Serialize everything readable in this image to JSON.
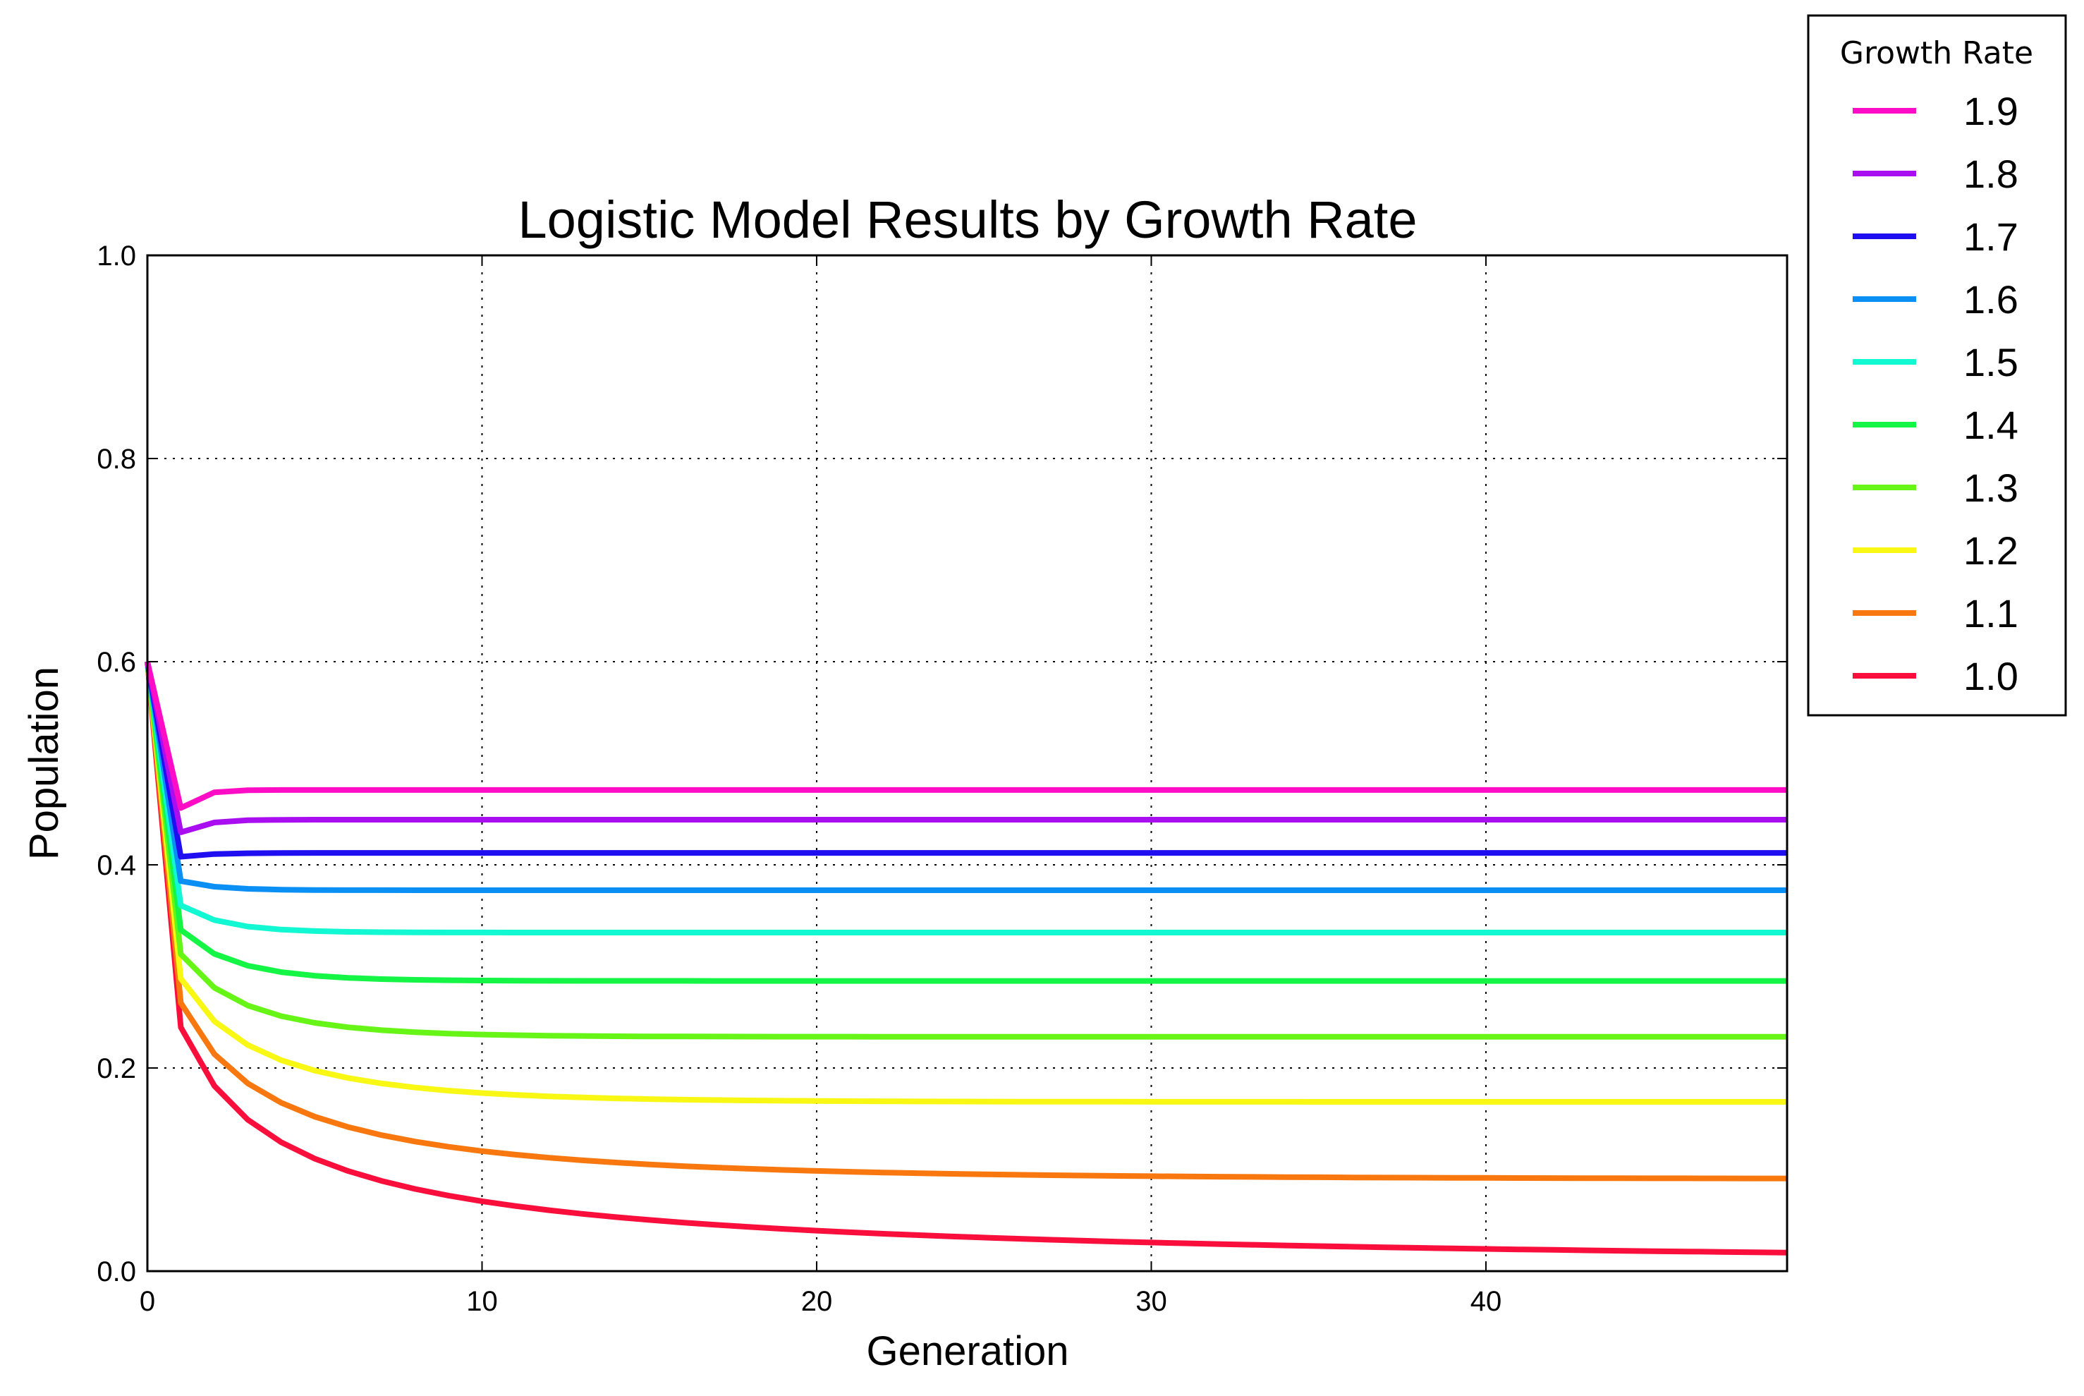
{
  "chart_data": {
    "type": "line",
    "title": "Logistic Model Results by Growth Rate",
    "xlabel": "Generation",
    "ylabel": "Population",
    "xlim": [
      0,
      49
    ],
    "ylim": [
      0.0,
      1.0
    ],
    "xticks": [
      "0",
      "10",
      "20",
      "30",
      "40"
    ],
    "yticks": [
      "0.0",
      "0.2",
      "0.4",
      "0.6",
      "0.8",
      "1.0"
    ],
    "grid": true,
    "legend": {
      "title": "Growth Rate",
      "placement": "outside-top-right"
    },
    "initial_population": 0.6,
    "generations": 50,
    "series": [
      {
        "name": "1.9",
        "rate": 1.9,
        "color": "#ff0dc6"
      },
      {
        "name": "1.8",
        "rate": 1.8,
        "color": "#a80eef"
      },
      {
        "name": "1.7",
        "rate": 1.7,
        "color": "#1f0ff0"
      },
      {
        "name": "1.6",
        "rate": 1.6,
        "color": "#0a90f5"
      },
      {
        "name": "1.5",
        "rate": 1.5,
        "color": "#12f8d2"
      },
      {
        "name": "1.4",
        "rate": 1.4,
        "color": "#14f545"
      },
      {
        "name": "1.3",
        "rate": 1.3,
        "color": "#66f516"
      },
      {
        "name": "1.2",
        "rate": 1.2,
        "color": "#f8f814"
      },
      {
        "name": "1.1",
        "rate": 1.1,
        "color": "#f8780f"
      },
      {
        "name": "1.0",
        "rate": 1.0,
        "color": "#fa0f3c"
      }
    ]
  }
}
